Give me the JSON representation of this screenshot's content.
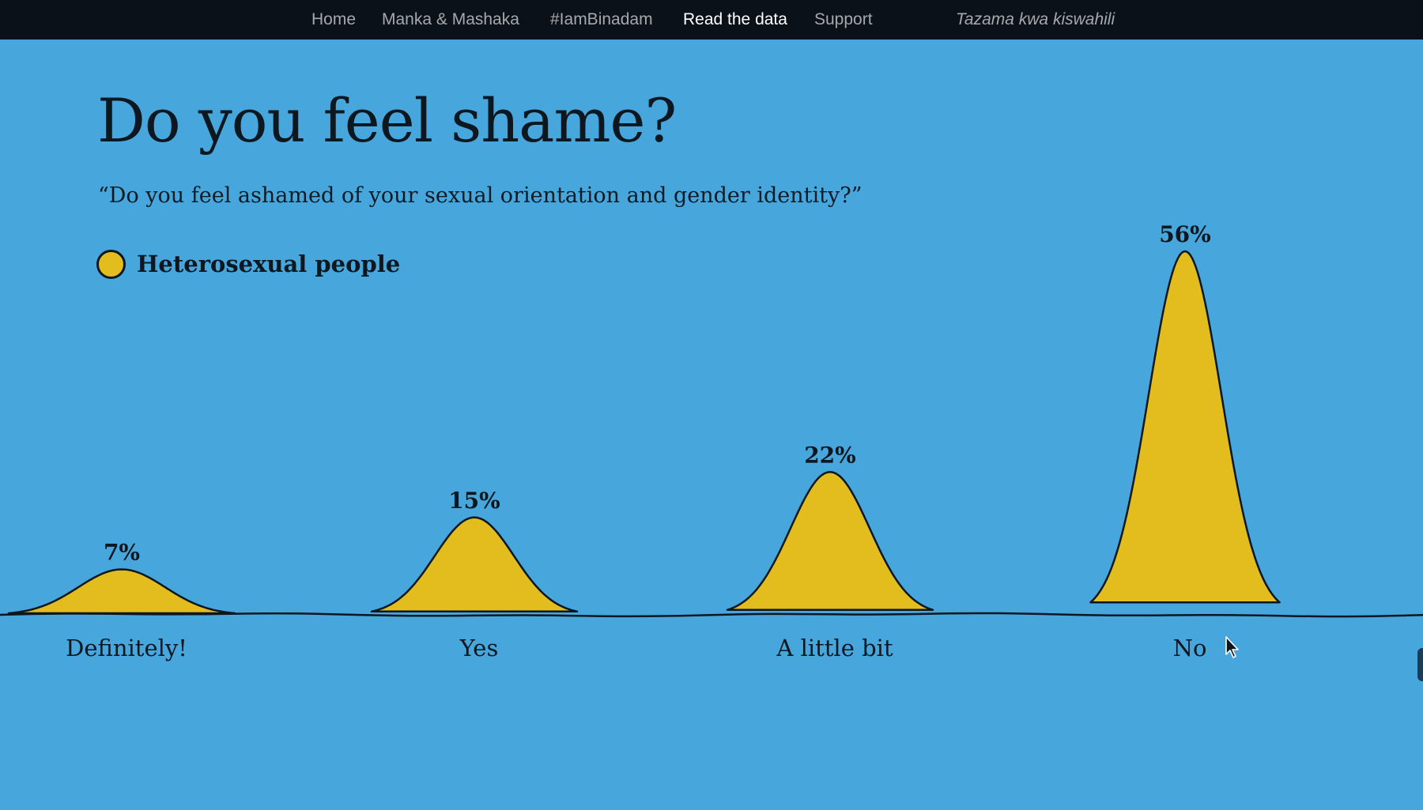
{
  "nav": {
    "items": [
      {
        "label": "Home",
        "active": false
      },
      {
        "label": "Manka & Mashaka",
        "active": false
      },
      {
        "label": "#IamBinadam",
        "active": false
      },
      {
        "label": "Read the data",
        "active": true
      },
      {
        "label": "Support",
        "active": false
      }
    ],
    "language_link": "Tazama kwa kiswahili"
  },
  "page": {
    "title": "Do you feel shame?",
    "subtitle": "“Do you feel ashamed of your sexual orientation and gender identity?”"
  },
  "colors": {
    "background": "#47a7dc",
    "nav_background": "#0a1118",
    "series_fill": "#e3bd1e",
    "outline": "#0d1720"
  },
  "chart_data": {
    "type": "area",
    "title": "Do you feel shame?",
    "subtitle": "“Do you feel ashamed of your sexual orientation and gender identity?”",
    "categories": [
      "Definitely!",
      "Yes",
      "A little bit",
      "No"
    ],
    "series": [
      {
        "name": "Heterosexual people",
        "values": [
          7,
          15,
          22,
          56
        ],
        "unit": "%",
        "color": "#e3bd1e"
      }
    ],
    "value_labels": [
      "7%",
      "15%",
      "22%",
      "56%"
    ],
    "legend_position": "top-left",
    "ylim": [
      0,
      56
    ],
    "grid": false
  }
}
